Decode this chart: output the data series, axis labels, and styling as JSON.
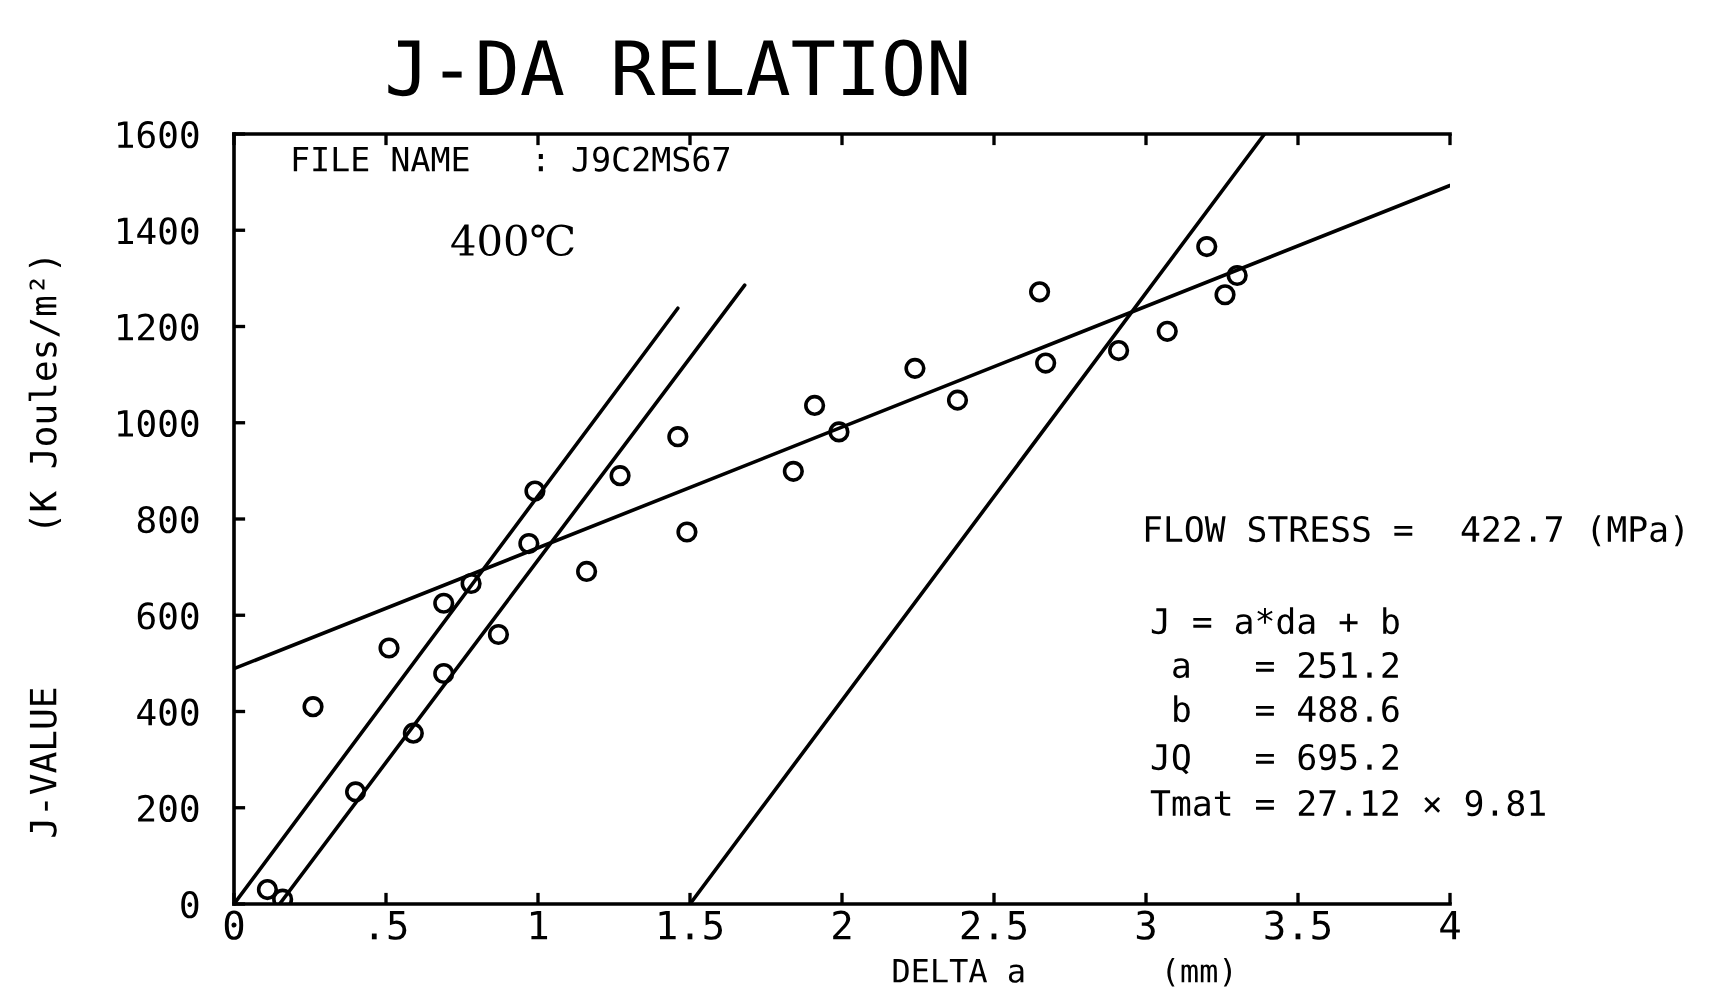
{
  "chart_data": {
    "type": "scatter",
    "title": "J-DA RELATION",
    "xlabel": "DELTA a       (mm)",
    "ylabel": "J-VALUE       (K Joules/m²)",
    "xlim": [
      0,
      4
    ],
    "ylim": [
      0,
      1600
    ],
    "xticks": [
      0,
      {
        "value": 0.5,
        "label": ".5"
      },
      1,
      1.5,
      2,
      2.5,
      3,
      3.5,
      4
    ],
    "yticks": [
      0,
      200,
      400,
      600,
      800,
      1000,
      1200,
      1400,
      1600
    ],
    "series": [
      {
        "marker": "circle",
        "color": "#000000",
        "x": [
          0.11,
          0.16,
          0.26,
          0.4,
          0.51,
          0.59,
          0.69,
          0.69,
          0.78,
          0.87,
          0.97,
          0.99,
          1.16,
          1.27,
          1.46,
          1.49,
          1.84,
          1.91,
          1.99,
          2.24,
          2.38,
          2.65,
          2.67,
          2.91,
          3.07,
          3.2,
          3.26,
          3.3
        ],
        "values": [
          30,
          10,
          410,
          233,
          532,
          355,
          479,
          625,
          666,
          560,
          749,
          858,
          691,
          890,
          971,
          773,
          899,
          1036,
          981,
          1113,
          1047,
          1272,
          1124,
          1150,
          1190,
          1366,
          1266,
          1306
        ]
      },
      {
        "type": "line",
        "color": "#000000",
        "x": [
          0,
          4
        ],
        "values": [
          489,
          1493
        ]
      },
      {
        "type": "line",
        "color": "#000000",
        "x": [
          0,
          1.46
        ],
        "values": [
          0,
          1238
        ]
      },
      {
        "type": "line",
        "color": "#000000",
        "x": [
          0.15,
          1.68
        ],
        "values": [
          0,
          1286
        ]
      },
      {
        "type": "line",
        "color": "#000000",
        "x": [
          1.5,
          3.39
        ],
        "values": [
          0,
          1600
        ]
      }
    ],
    "annotations": [
      "FILE NAME   : J9C2MS67",
      "400℃",
      "FLOW STRESS =",
      "422.7 (MPa)",
      "J = a*da + b",
      " a   = 251.2",
      " b   = 488.6",
      "JQ   = 695.2",
      "Tmat = 27.12 × 9.81"
    ]
  }
}
